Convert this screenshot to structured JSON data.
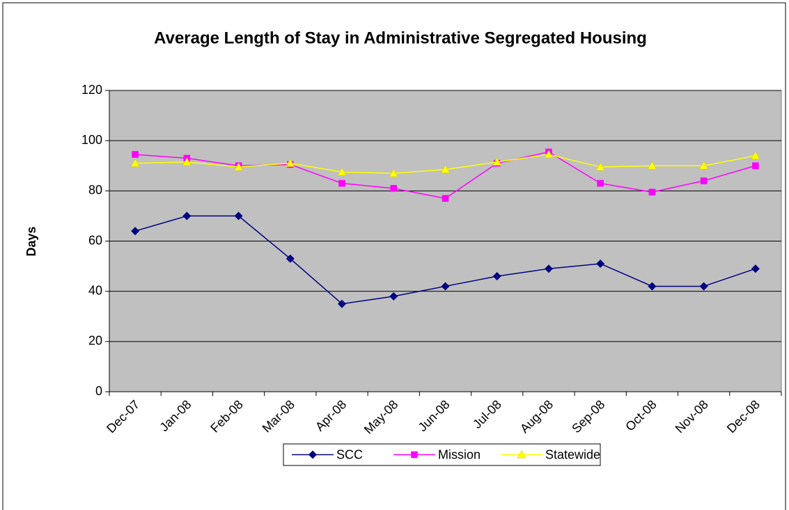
{
  "chart_data": {
    "type": "line",
    "title": "Average Length of Stay in Administrative Segregated Housing",
    "y_label": "Days",
    "categories": [
      "Dec-07",
      "Jan-08",
      "Feb-08",
      "Mar-08",
      "Apr-08",
      "May-08",
      "Jun-08",
      "Jul-08",
      "Aug-08",
      "Sep-08",
      "Oct-08",
      "Nov-08",
      "Dec-08"
    ],
    "series": [
      {
        "name": "SCC",
        "color": "#000080",
        "marker": "diamond",
        "values": [
          64,
          70,
          70,
          53,
          35,
          38,
          42,
          46,
          49,
          51,
          42,
          42,
          49
        ]
      },
      {
        "name": "Mission",
        "color": "#ff00ff",
        "marker": "square",
        "values": [
          94.5,
          93,
          90,
          90.5,
          83,
          81,
          77,
          91,
          95.5,
          83,
          79.5,
          84,
          90
        ]
      },
      {
        "name": "Statewide",
        "color": "#ffff00",
        "marker": "triangle",
        "values": [
          91,
          91.5,
          89.5,
          91,
          87.5,
          87,
          88.5,
          91.5,
          94.5,
          89.5,
          90,
          90,
          94
        ]
      }
    ],
    "ylim": [
      0,
      120
    ],
    "yticks": [
      0,
      20,
      40,
      60,
      80,
      100,
      120
    ],
    "grid": true,
    "plot_background": "#c0c0c0",
    "legend": "bottom"
  }
}
